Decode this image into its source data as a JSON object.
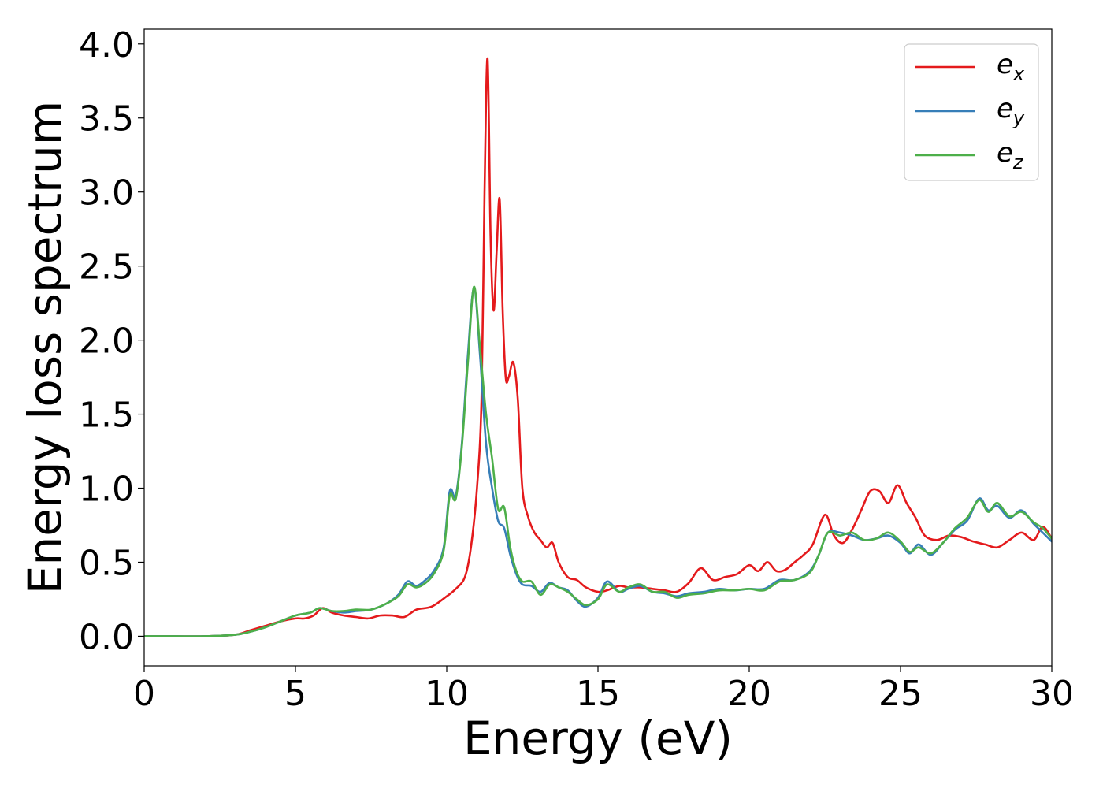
{
  "chart_data": {
    "type": "line",
    "xlabel": "Energy (eV)",
    "ylabel": "Energy loss spectrum",
    "xlim": [
      0,
      30
    ],
    "ylim": [
      -0.2,
      4.1
    ],
    "xticks": [
      0,
      5,
      10,
      15,
      20,
      25,
      30
    ],
    "xtick_labels": [
      "0",
      "5",
      "10",
      "15",
      "20",
      "25",
      "30"
    ],
    "yticks": [
      0.0,
      0.5,
      1.0,
      1.5,
      2.0,
      2.5,
      3.0,
      3.5,
      4.0
    ],
    "ytick_labels": [
      "0.0",
      "0.5",
      "1.0",
      "1.5",
      "2.0",
      "2.5",
      "3.0",
      "3.5",
      "4.0"
    ],
    "grid": false,
    "legend_position": "top-right",
    "series": [
      {
        "name": "e_x",
        "label_main": "e",
        "label_sub": "x",
        "color": "#e41a1c",
        "x": [
          0,
          1,
          2,
          3,
          3.5,
          4,
          4.5,
          5,
          5.3,
          5.6,
          5.9,
          6.2,
          6.6,
          7,
          7.4,
          7.8,
          8.2,
          8.6,
          9,
          9.5,
          10,
          10.3,
          10.6,
          10.8,
          11,
          11.15,
          11.25,
          11.35,
          11.45,
          11.55,
          11.65,
          11.75,
          11.85,
          11.95,
          12.05,
          12.2,
          12.35,
          12.5,
          12.7,
          12.9,
          13.1,
          13.3,
          13.5,
          13.7,
          14,
          14.3,
          14.6,
          15,
          15.3,
          15.7,
          16,
          16.4,
          16.8,
          17.2,
          17.6,
          18,
          18.4,
          18.8,
          19.2,
          19.6,
          20,
          20.3,
          20.6,
          20.9,
          21.2,
          21.5,
          21.8,
          22.1,
          22.5,
          22.8,
          23.1,
          23.4,
          23.7,
          24,
          24.3,
          24.6,
          24.9,
          25.2,
          25.5,
          25.8,
          26.2,
          26.6,
          27,
          27.4,
          27.8,
          28.2,
          28.6,
          29,
          29.4,
          29.7,
          30
        ],
        "y": [
          0,
          0,
          0,
          0.01,
          0.04,
          0.07,
          0.1,
          0.12,
          0.12,
          0.14,
          0.19,
          0.16,
          0.14,
          0.13,
          0.12,
          0.14,
          0.14,
          0.13,
          0.18,
          0.2,
          0.27,
          0.32,
          0.4,
          0.6,
          1.0,
          1.6,
          3.0,
          3.9,
          2.7,
          2.2,
          2.6,
          2.95,
          2.2,
          1.75,
          1.75,
          1.85,
          1.6,
          1.0,
          0.8,
          0.7,
          0.65,
          0.6,
          0.63,
          0.5,
          0.4,
          0.38,
          0.33,
          0.3,
          0.31,
          0.34,
          0.33,
          0.33,
          0.32,
          0.31,
          0.3,
          0.36,
          0.46,
          0.38,
          0.4,
          0.42,
          0.48,
          0.44,
          0.5,
          0.44,
          0.45,
          0.5,
          0.55,
          0.62,
          0.82,
          0.68,
          0.63,
          0.72,
          0.85,
          0.98,
          0.98,
          0.9,
          1.02,
          0.9,
          0.8,
          0.68,
          0.65,
          0.68,
          0.67,
          0.64,
          0.62,
          0.6,
          0.65,
          0.7,
          0.65,
          0.74,
          0.66
        ]
      },
      {
        "name": "e_y",
        "label_main": "e",
        "label_sub": "y",
        "color": "#377eb8",
        "x": [
          0,
          1,
          2,
          3,
          3.5,
          4,
          4.5,
          5,
          5.5,
          5.8,
          6.2,
          6.6,
          7,
          7.5,
          8,
          8.4,
          8.7,
          9,
          9.3,
          9.6,
          9.9,
          10.1,
          10.3,
          10.5,
          10.7,
          10.9,
          11.1,
          11.3,
          11.5,
          11.7,
          11.9,
          12.1,
          12.3,
          12.5,
          12.8,
          13.1,
          13.4,
          13.7,
          14,
          14.3,
          14.6,
          15,
          15.3,
          15.7,
          16,
          16.4,
          16.8,
          17.2,
          17.6,
          18,
          18.5,
          19,
          19.5,
          20,
          20.5,
          21,
          21.5,
          22,
          22.3,
          22.6,
          23,
          23.4,
          23.8,
          24.2,
          24.6,
          25,
          25.3,
          25.6,
          26,
          26.4,
          26.8,
          27.2,
          27.6,
          27.9,
          28.2,
          28.6,
          29,
          29.4,
          29.7,
          30
        ],
        "y": [
          0,
          0,
          0,
          0.01,
          0.03,
          0.06,
          0.1,
          0.14,
          0.16,
          0.19,
          0.17,
          0.16,
          0.17,
          0.18,
          0.22,
          0.28,
          0.37,
          0.34,
          0.38,
          0.45,
          0.6,
          0.98,
          0.95,
          1.3,
          1.9,
          2.35,
          1.9,
          1.3,
          1.0,
          0.78,
          0.73,
          0.55,
          0.42,
          0.35,
          0.34,
          0.3,
          0.36,
          0.33,
          0.31,
          0.24,
          0.2,
          0.26,
          0.37,
          0.3,
          0.32,
          0.34,
          0.3,
          0.29,
          0.27,
          0.29,
          0.3,
          0.32,
          0.31,
          0.32,
          0.32,
          0.38,
          0.38,
          0.44,
          0.55,
          0.7,
          0.7,
          0.68,
          0.65,
          0.66,
          0.68,
          0.63,
          0.56,
          0.62,
          0.55,
          0.63,
          0.72,
          0.78,
          0.93,
          0.85,
          0.88,
          0.8,
          0.85,
          0.76,
          0.7,
          0.64
        ]
      },
      {
        "name": "e_z",
        "label_main": "e",
        "label_sub": "z",
        "color": "#4daf4a",
        "x": [
          0,
          1,
          2,
          3,
          3.5,
          4,
          4.5,
          5,
          5.5,
          5.8,
          6.2,
          6.6,
          7,
          7.5,
          8,
          8.4,
          8.7,
          9,
          9.3,
          9.6,
          9.9,
          10.1,
          10.3,
          10.5,
          10.7,
          10.9,
          11.1,
          11.3,
          11.5,
          11.7,
          11.9,
          12.1,
          12.3,
          12.5,
          12.8,
          13.1,
          13.4,
          13.7,
          14,
          14.3,
          14.6,
          15,
          15.3,
          15.7,
          16,
          16.4,
          16.8,
          17.2,
          17.6,
          18,
          18.5,
          19,
          19.5,
          20,
          20.5,
          21,
          21.5,
          22,
          22.3,
          22.6,
          23,
          23.4,
          23.8,
          24.2,
          24.6,
          25,
          25.3,
          25.6,
          26,
          26.4,
          26.8,
          27.2,
          27.6,
          27.9,
          28.2,
          28.6,
          29,
          29.4,
          29.7,
          30
        ],
        "y": [
          0,
          0,
          0,
          0.01,
          0.03,
          0.06,
          0.1,
          0.14,
          0.16,
          0.19,
          0.17,
          0.17,
          0.18,
          0.18,
          0.22,
          0.27,
          0.35,
          0.33,
          0.36,
          0.43,
          0.58,
          0.95,
          0.93,
          1.28,
          1.85,
          2.36,
          1.95,
          1.5,
          1.2,
          0.86,
          0.87,
          0.6,
          0.44,
          0.37,
          0.37,
          0.28,
          0.35,
          0.33,
          0.3,
          0.25,
          0.21,
          0.25,
          0.35,
          0.3,
          0.33,
          0.35,
          0.3,
          0.3,
          0.26,
          0.28,
          0.29,
          0.31,
          0.31,
          0.32,
          0.31,
          0.37,
          0.38,
          0.43,
          0.55,
          0.7,
          0.68,
          0.7,
          0.65,
          0.66,
          0.7,
          0.64,
          0.57,
          0.6,
          0.56,
          0.63,
          0.73,
          0.8,
          0.92,
          0.84,
          0.9,
          0.81,
          0.84,
          0.77,
          0.73,
          0.66
        ]
      }
    ]
  }
}
